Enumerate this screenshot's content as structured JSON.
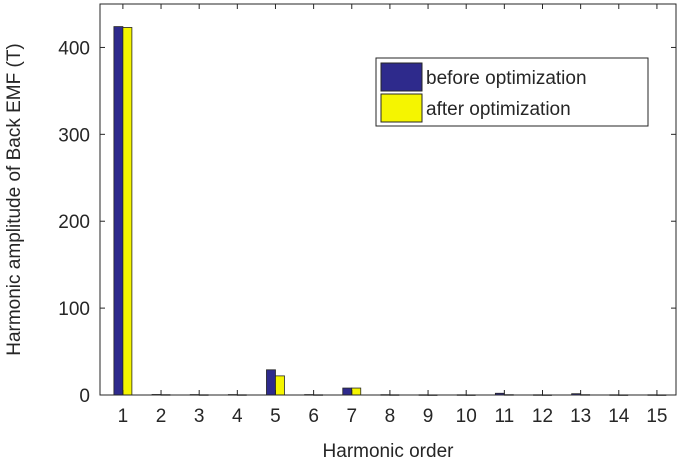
{
  "chart_data": {
    "type": "bar",
    "xlabel": "Harmonic order",
    "ylabel": "Harmonic amplitude of Back EMF (T)",
    "categories": [
      "1",
      "2",
      "3",
      "4",
      "5",
      "6",
      "7",
      "8",
      "9",
      "10",
      "11",
      "12",
      "13",
      "14",
      "15"
    ],
    "ylim": [
      0,
      450
    ],
    "yticks": [
      0,
      100,
      200,
      300,
      400
    ],
    "grid": false,
    "legend_position": "top-right",
    "series": [
      {
        "name": "before optimization",
        "color": "#2e2a8c",
        "values": [
          424,
          0.6,
          0.5,
          0.5,
          29,
          0.5,
          8,
          0.4,
          0.3,
          0.3,
          2,
          0.3,
          1.5,
          0.3,
          0.3
        ]
      },
      {
        "name": "after optimization",
        "color": "#f5f500",
        "values": [
          423,
          0.4,
          0.3,
          0.3,
          22,
          0.3,
          8,
          0.3,
          0.2,
          0.2,
          0.4,
          0.2,
          0.4,
          0.2,
          0.2
        ]
      }
    ]
  }
}
